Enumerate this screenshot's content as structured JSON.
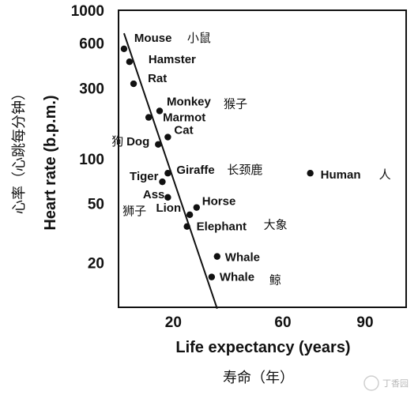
{
  "chart_data": {
    "type": "scatter",
    "xlabel": "Life expectancy (years)",
    "xlabel_zh": "寿命（年）",
    "ylabel": "Heart rate (b.p.m.)",
    "ylabel_zh": "心率（心跳每分钟）",
    "y_scale": "log",
    "xlim": [
      0,
      105
    ],
    "ylim": [
      10,
      1000
    ],
    "x_ticks": [
      20,
      60,
      90
    ],
    "y_ticks": [
      20,
      50,
      100,
      300,
      600,
      1000
    ],
    "grid": false,
    "points": [
      {
        "name": "Mouse",
        "name_zh": "小鼠",
        "x": 2,
        "y": 550
      },
      {
        "name": "Hamster",
        "name_zh": "",
        "x": 4,
        "y": 450
      },
      {
        "name": "Rat",
        "name_zh": "",
        "x": 5.5,
        "y": 320
      },
      {
        "name": "Monkey",
        "name_zh": "猴子",
        "x": 15,
        "y": 210
      },
      {
        "name": "Marmot",
        "name_zh": "",
        "x": 11,
        "y": 190
      },
      {
        "name": "Cat",
        "name_zh": "",
        "x": 18,
        "y": 140
      },
      {
        "name": "Dog",
        "name_zh": "狗",
        "x": 14.5,
        "y": 125
      },
      {
        "name": "Giraffe",
        "name_zh": "长颈鹿",
        "x": 18,
        "y": 80
      },
      {
        "name": "Tiger",
        "name_zh": "",
        "x": 16,
        "y": 70
      },
      {
        "name": "Ass",
        "name_zh": "",
        "x": 18,
        "y": 55
      },
      {
        "name": "Lion",
        "name_zh": "狮子",
        "x": 26,
        "y": 42
      },
      {
        "name": "Horse",
        "name_zh": "",
        "x": 28.5,
        "y": 47
      },
      {
        "name": "Elephant",
        "name_zh": "大象",
        "x": 25,
        "y": 35
      },
      {
        "name": "Whale",
        "name_zh": "",
        "x": 36,
        "y": 22
      },
      {
        "name": "Whale",
        "name_zh": "鲸",
        "x": 34,
        "y": 16
      },
      {
        "name": "Human",
        "name_zh": "人",
        "x": 70,
        "y": 80
      }
    ],
    "trend_line": {
      "x": [
        2,
        36
      ],
      "y": [
        700,
        9.8
      ]
    }
  },
  "watermark": "丁香园"
}
